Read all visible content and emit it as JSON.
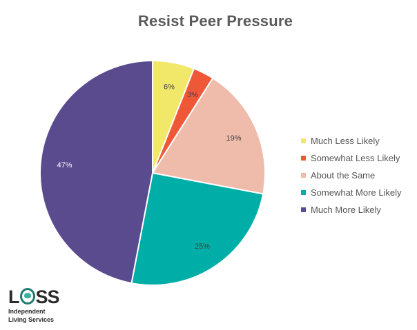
{
  "chart_data": {
    "type": "pie",
    "title": "Resist Peer Pressure",
    "categories": [
      "Much Less Likely",
      "Somewhat Less Likely",
      "About the Same",
      "Somewhat More Likely",
      "Much More Likely"
    ],
    "values": [
      6,
      3,
      19,
      25,
      47
    ],
    "labels": [
      "6%",
      "3%",
      "19%",
      "25%",
      "47%"
    ],
    "colors": [
      "#f1e86a",
      "#ef5837",
      "#efbbab",
      "#00aea8",
      "#5a4a8e"
    ],
    "label_colors": [
      "#444444",
      "#444444",
      "#444444",
      "#444444",
      "#ffffff"
    ],
    "legend_position": "right"
  },
  "logo": {
    "mark_left": "L",
    "mark_right": "SS",
    "line1": "Independent",
    "line2": "Living Services"
  }
}
